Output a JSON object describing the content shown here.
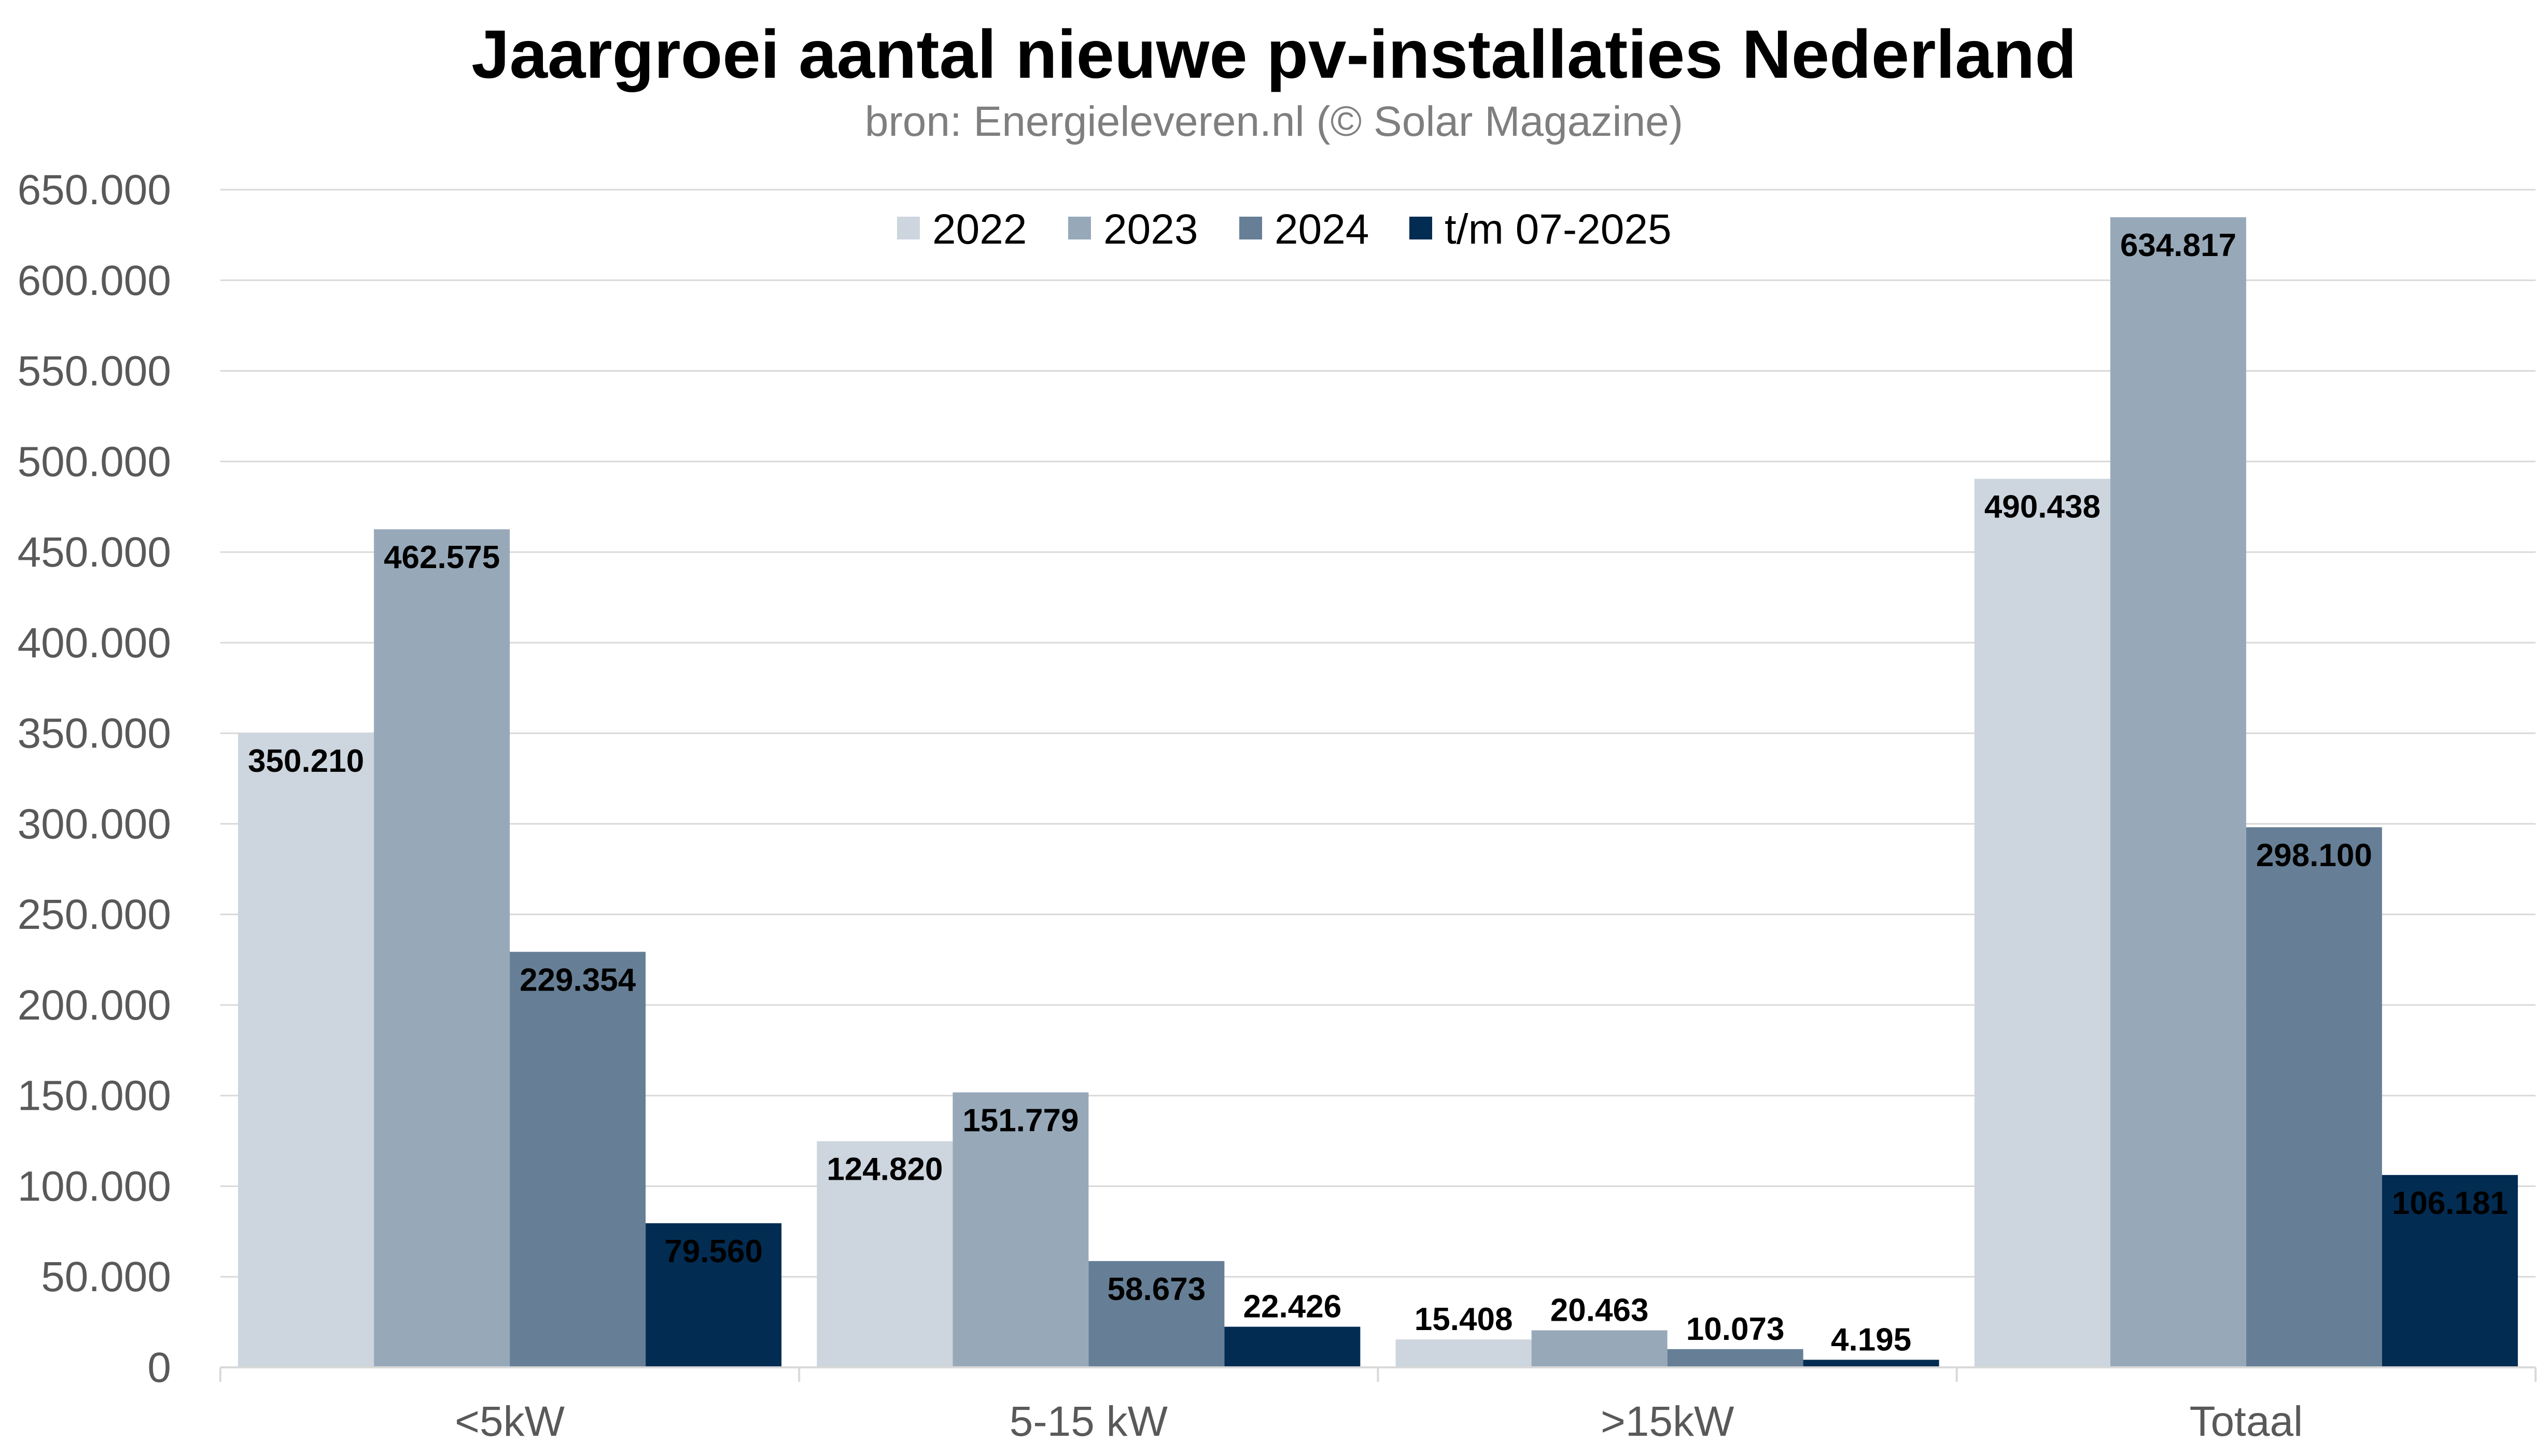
{
  "chart_data": {
    "type": "bar",
    "title": "Jaargroei aantal nieuwe pv-installaties Nederland",
    "subtitle": "bron: Energieleveren.nl (© Solar Magazine)",
    "categories": [
      "<5kW",
      "5-15 kW",
      ">15kW",
      "Totaal"
    ],
    "series": [
      {
        "name": "2022",
        "color": "#cdd5de",
        "values": [
          350210,
          124820,
          15408,
          490438
        ],
        "labels": [
          "350.210",
          "124.820",
          "15.408",
          "490.438"
        ]
      },
      {
        "name": "2023",
        "color": "#97a9b9",
        "values": [
          462575,
          151779,
          20463,
          634817
        ],
        "labels": [
          "462.575",
          "151.779",
          "20.463",
          "634.817"
        ]
      },
      {
        "name": "2024",
        "color": "#667f96",
        "values": [
          229354,
          58673,
          10073,
          298100
        ],
        "labels": [
          "229.354",
          "58.673",
          "10.073",
          "298.100"
        ]
      },
      {
        "name": "t/m 07-2025",
        "color": "#022c52",
        "values": [
          79560,
          22426,
          4195,
          106181
        ],
        "labels": [
          "79.560",
          "22.426",
          "4.195",
          "106.181"
        ]
      }
    ],
    "ylim": [
      0,
      650000
    ],
    "yticks": [
      0,
      50000,
      100000,
      150000,
      200000,
      250000,
      300000,
      350000,
      400000,
      450000,
      500000,
      550000,
      600000,
      650000
    ],
    "ytick_labels": [
      "0",
      "50.000",
      "100.000",
      "150.000",
      "200.000",
      "250.000",
      "300.000",
      "350.000",
      "400.000",
      "450.000",
      "500.000",
      "550.000",
      "600.000",
      "650.000"
    ],
    "xlabel": "",
    "ylabel": "",
    "grid": true,
    "legend_position": "top"
  }
}
